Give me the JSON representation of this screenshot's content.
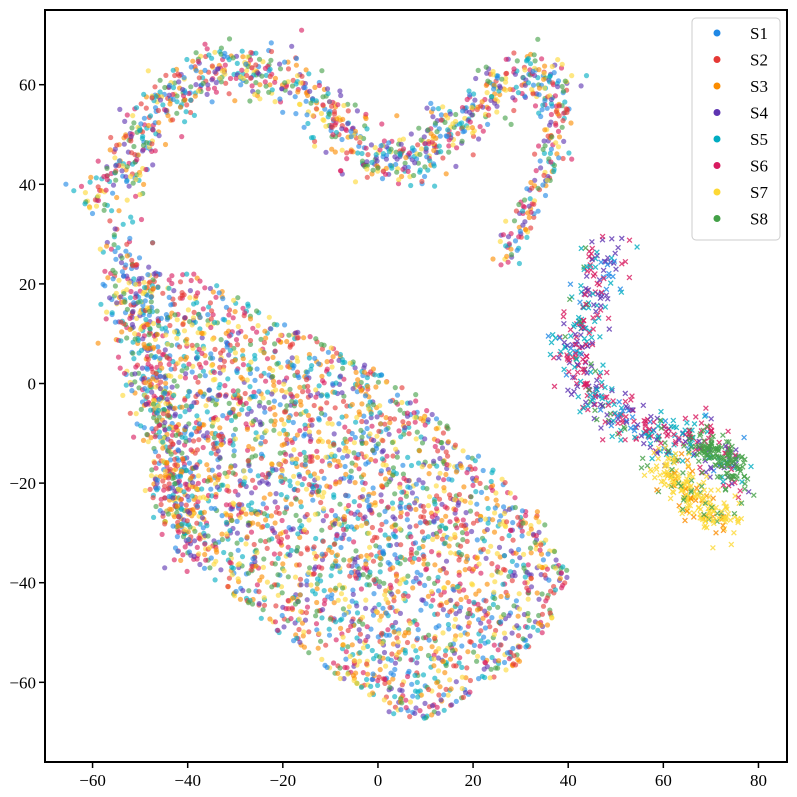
{
  "chart_data": {
    "type": "scatter",
    "title": "",
    "xlabel": "",
    "ylabel": "",
    "xlim": [
      -70,
      86
    ],
    "ylim": [
      -76,
      75
    ],
    "x_ticks": [
      -60,
      -40,
      -20,
      0,
      20,
      40,
      60,
      80
    ],
    "y_ticks": [
      -60,
      -40,
      -20,
      0,
      20,
      40,
      60
    ],
    "x_tick_labels": [
      "−60",
      "−40",
      "−20",
      "0",
      "20",
      "40",
      "60",
      "80"
    ],
    "y_tick_labels": [
      "−60",
      "−40",
      "−20",
      "0",
      "20",
      "40",
      "60"
    ],
    "grid": false,
    "legend_position": "top-right",
    "markers": {
      "source": "circle",
      "target": "x"
    },
    "series": [
      {
        "name": "S1",
        "color": "#1f88e5"
      },
      {
        "name": "S2",
        "color": "#e53935"
      },
      {
        "name": "S3",
        "color": "#fb8c00"
      },
      {
        "name": "S4",
        "color": "#5e35b1"
      },
      {
        "name": "S5",
        "color": "#00acc1"
      },
      {
        "name": "S6",
        "color": "#d81b60"
      },
      {
        "name": "S7",
        "color": "#fdd835"
      },
      {
        "name": "S8",
        "color": "#43a047"
      }
    ],
    "circle_clusters": [
      {
        "polyline": [
          [
            -60,
            36
          ],
          [
            -52,
            44
          ],
          [
            -48,
            54
          ],
          [
            -40,
            60
          ],
          [
            -30,
            63
          ],
          [
            -22,
            62
          ],
          [
            -12,
            56
          ],
          [
            -6,
            50
          ],
          [
            0,
            45
          ],
          [
            6,
            44
          ],
          [
            12,
            48
          ],
          [
            18,
            54
          ],
          [
            24,
            58
          ],
          [
            30,
            62
          ],
          [
            36,
            62
          ],
          [
            39,
            56
          ]
        ],
        "radius": 4.5,
        "count": 950
      },
      {
        "polyline": [
          [
            37,
            56
          ],
          [
            37,
            46
          ],
          [
            33,
            38
          ],
          [
            29,
            30
          ],
          [
            27,
            24
          ]
        ],
        "radius": 2.5,
        "count": 130
      },
      {
        "polyline": [
          [
            -54,
            28
          ],
          [
            -52,
            15
          ],
          [
            -48,
            2
          ],
          [
            -45,
            -10
          ],
          [
            -42,
            -22
          ],
          [
            -40,
            -33
          ]
        ],
        "radius": 5,
        "count": 550
      },
      {
        "polygon": [
          [
            -50,
            22
          ],
          [
            -38,
            22
          ],
          [
            -20,
            12
          ],
          [
            -6,
            6
          ],
          [
            8,
            -2
          ],
          [
            16,
            -10
          ],
          [
            28,
            -20
          ],
          [
            34,
            -26
          ],
          [
            40,
            -38
          ],
          [
            38,
            -46
          ],
          [
            30,
            -56
          ],
          [
            20,
            -62
          ],
          [
            10,
            -68
          ],
          [
            2,
            -66
          ],
          [
            -10,
            -58
          ],
          [
            -24,
            -48
          ],
          [
            -34,
            -40
          ],
          [
            -40,
            -34
          ],
          [
            -44,
            -24
          ],
          [
            -46,
            -12
          ],
          [
            -48,
            0
          ],
          [
            -50,
            12
          ]
        ],
        "count": 2800
      }
    ],
    "x_clusters": [
      {
        "polyline": [
          [
            50,
            27
          ],
          [
            46,
            22
          ],
          [
            44,
            14
          ],
          [
            40,
            6
          ],
          [
            44,
            0
          ],
          [
            50,
            -6
          ],
          [
            58,
            -10
          ],
          [
            64,
            -10
          ],
          [
            70,
            -12
          ],
          [
            74,
            -16
          ],
          [
            76,
            -20
          ]
        ],
        "radius": 5,
        "count": 500,
        "series_weights": [
          1,
          0,
          0,
          3,
          3,
          4,
          0,
          1
        ]
      },
      {
        "polyline": [
          [
            60,
            -16
          ],
          [
            66,
            -22
          ],
          [
            70,
            -26
          ],
          [
            74,
            -28
          ]
        ],
        "radius": 4,
        "count": 220,
        "series_weights": [
          0,
          0,
          1,
          0,
          0,
          0,
          6,
          1
        ]
      },
      {
        "polyline": [
          [
            68,
            -12
          ],
          [
            74,
            -16
          ],
          [
            77,
            -20
          ]
        ],
        "radius": 3,
        "count": 110,
        "series_weights": [
          0,
          0,
          0,
          0,
          0,
          0,
          0,
          1
        ]
      }
    ],
    "note_values": "approximate distribution of a t-SNE embedding; individual point values are not legible"
  }
}
